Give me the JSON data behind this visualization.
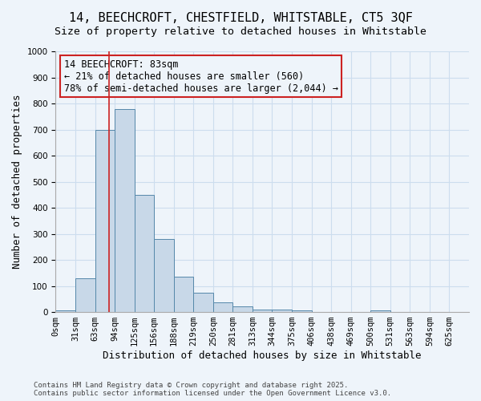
{
  "title_line1": "14, BEECHCROFT, CHESTFIELD, WHITSTABLE, CT5 3QF",
  "title_line2": "Size of property relative to detached houses in Whitstable",
  "xlabel": "Distribution of detached houses by size in Whitstable",
  "ylabel": "Number of detached properties",
  "bin_labels": [
    "0sqm",
    "31sqm",
    "63sqm",
    "94sqm",
    "125sqm",
    "156sqm",
    "188sqm",
    "219sqm",
    "250sqm",
    "281sqm",
    "313sqm",
    "344sqm",
    "375sqm",
    "406sqm",
    "438sqm",
    "469sqm",
    "500sqm",
    "531sqm",
    "563sqm",
    "594sqm",
    "625sqm"
  ],
  "bar_values": [
    5,
    130,
    700,
    780,
    450,
    280,
    135,
    73,
    38,
    22,
    10,
    10,
    5,
    0,
    0,
    0,
    5,
    0,
    0,
    0,
    0
  ],
  "bar_color": "#c8d8e8",
  "bar_edge_color": "#5588aa",
  "grid_color": "#ccddee",
  "background_color": "#eef4fa",
  "vline_x": 2.7,
  "vline_color": "#cc2222",
  "annotation_text": "14 BEECHCROFT: 83sqm\n← 21% of detached houses are smaller (560)\n78% of semi-detached houses are larger (2,044) →",
  "annotation_box_color": "#cc2222",
  "ylim": [
    0,
    1000
  ],
  "yticks": [
    0,
    100,
    200,
    300,
    400,
    500,
    600,
    700,
    800,
    900,
    1000
  ],
  "footer_line1": "Contains HM Land Registry data © Crown copyright and database right 2025.",
  "footer_line2": "Contains public sector information licensed under the Open Government Licence v3.0.",
  "title_fontsize": 11,
  "subtitle_fontsize": 9.5,
  "axis_label_fontsize": 9,
  "tick_fontsize": 7.5,
  "annotation_fontsize": 8.5,
  "footer_fontsize": 6.5
}
